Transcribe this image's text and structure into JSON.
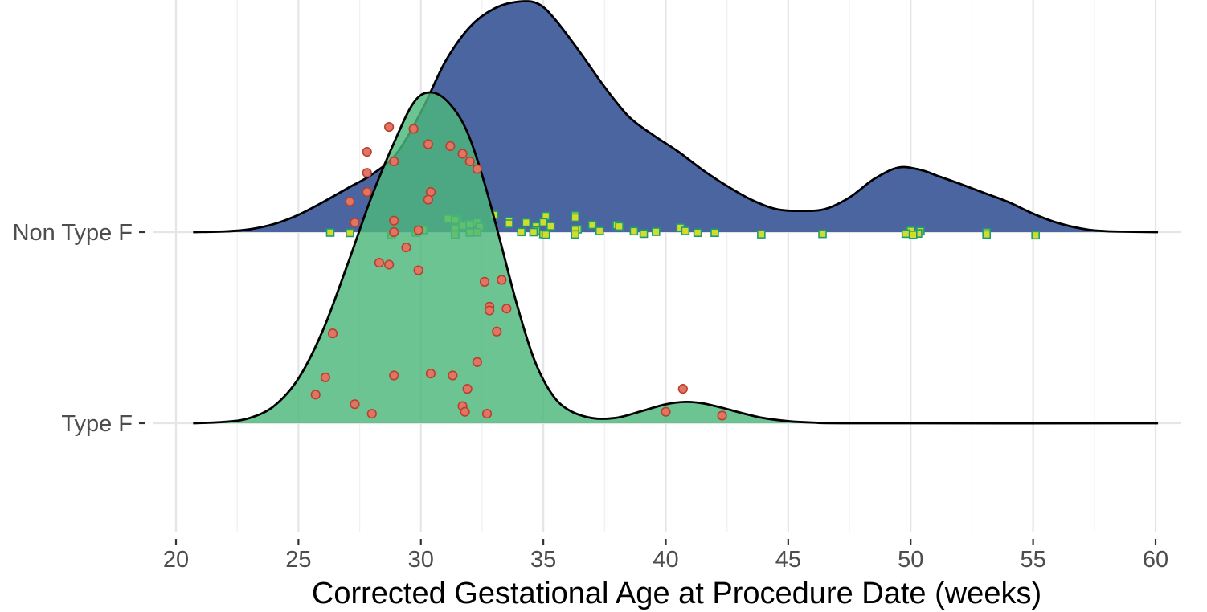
{
  "chart_data": {
    "type": "ridgeline",
    "title": "",
    "xlabel": "Corrected Gestational Age at Procedure Date (weeks)",
    "ylabel": "",
    "xlim": [
      20,
      60
    ],
    "x_ticks": [
      20,
      25,
      30,
      35,
      40,
      45,
      50,
      55,
      60
    ],
    "x_tick_labels": [
      "20",
      "25",
      "30",
      "35",
      "40",
      "45",
      "50",
      "55",
      "60"
    ],
    "categories": [
      "Type F",
      "Non Type F"
    ],
    "grid": true,
    "legend": "none",
    "series": [
      {
        "name": "Non Type F",
        "fill_color": "#4b65a1",
        "point_shape": "square",
        "point_fill": "#d2dc2a",
        "point_stroke": "#1f9a78",
        "density_profile": [
          [
            20.7,
            0.0
          ],
          [
            22,
            0.003
          ],
          [
            23,
            0.012
          ],
          [
            24,
            0.035
          ],
          [
            25,
            0.075
          ],
          [
            26,
            0.13
          ],
          [
            27,
            0.19
          ],
          [
            28,
            0.25
          ],
          [
            29,
            0.34
          ],
          [
            30,
            0.52
          ],
          [
            31,
            0.74
          ],
          [
            32,
            0.89
          ],
          [
            33,
            0.97
          ],
          [
            34,
            1.0
          ],
          [
            34.8,
            0.99
          ],
          [
            35.5,
            0.92
          ],
          [
            36.5,
            0.78
          ],
          [
            37.5,
            0.63
          ],
          [
            38.5,
            0.5
          ],
          [
            39.5,
            0.42
          ],
          [
            40.5,
            0.35
          ],
          [
            41.5,
            0.27
          ],
          [
            42.5,
            0.2
          ],
          [
            43.5,
            0.14
          ],
          [
            44.5,
            0.1
          ],
          [
            45.5,
            0.092
          ],
          [
            46.5,
            0.1
          ],
          [
            47.5,
            0.15
          ],
          [
            48.5,
            0.23
          ],
          [
            49.5,
            0.28
          ],
          [
            50.4,
            0.27
          ],
          [
            51.2,
            0.24
          ],
          [
            52,
            0.21
          ],
          [
            53,
            0.17
          ],
          [
            54,
            0.13
          ],
          [
            55,
            0.08
          ],
          [
            56,
            0.04
          ],
          [
            57,
            0.015
          ],
          [
            58,
            0.004
          ],
          [
            60.1,
            0.0
          ]
        ],
        "points": [
          [
            33.0,
            0.09
          ],
          [
            35.1,
            0.084
          ],
          [
            36.3,
            0.087
          ],
          [
            36.3,
            0.076
          ],
          [
            31.1,
            0.07
          ],
          [
            31.5,
            0.07
          ],
          [
            31.4,
            0.064
          ],
          [
            33.6,
            0.057
          ],
          [
            32.3,
            0.05
          ],
          [
            34.3,
            0.05
          ],
          [
            35.0,
            0.051
          ],
          [
            33.6,
            0.044
          ],
          [
            37.0,
            0.038
          ],
          [
            38.0,
            0.037
          ],
          [
            38.1,
            0.03
          ],
          [
            34.7,
            0.03
          ],
          [
            35.3,
            0.031
          ],
          [
            40.6,
            0.023
          ],
          [
            36.4,
            0.015
          ],
          [
            36.3,
            0.012
          ],
          [
            34.7,
            0.008
          ],
          [
            37.3,
            0.006
          ],
          [
            38.7,
            0.005
          ],
          [
            40.8,
            0.006
          ],
          [
            39.6,
            0.002
          ],
          [
            34.1,
            0.001
          ],
          [
            34.6,
            0.0
          ],
          [
            41.3,
            -0.003
          ],
          [
            42.0,
            -0.003
          ],
          [
            39.1,
            -0.008
          ],
          [
            35.0,
            -0.01
          ],
          [
            35.1,
            -0.013
          ],
          [
            36.3,
            -0.012
          ],
          [
            43.9,
            -0.011
          ],
          [
            46.4,
            -0.009
          ],
          [
            50.0,
            0.007
          ],
          [
            50.4,
            0.005
          ],
          [
            49.8,
            -0.008
          ],
          [
            50.3,
            -0.007
          ],
          [
            50.1,
            -0.014
          ],
          [
            53.1,
            -0.001
          ],
          [
            53.1,
            -0.012
          ],
          [
            55.1,
            -0.016
          ],
          [
            26.3,
            -0.002
          ],
          [
            32.0,
            0.041
          ],
          [
            31.7,
            0.034
          ],
          [
            32.4,
            0.027
          ],
          [
            31.4,
            0.019
          ],
          [
            30.1,
            0.014
          ],
          [
            30.1,
            0.011
          ],
          [
            29.8,
            -0.002
          ],
          [
            32.0,
            -0.002
          ],
          [
            32.3,
            -0.001
          ],
          [
            28.8,
            -0.015
          ],
          [
            31.4,
            -0.011
          ],
          [
            31.4,
            -0.013
          ],
          [
            27.1,
            -0.004
          ]
        ]
      },
      {
        "name": "Type F",
        "fill_color": "#4cb77b",
        "fill_opacity": 0.82,
        "point_shape": "circle",
        "point_fill": "#e07564",
        "point_stroke": "#b8402f",
        "density_profile": [
          [
            20.7,
            0.0
          ],
          [
            22,
            0.004
          ],
          [
            23,
            0.015
          ],
          [
            24,
            0.05
          ],
          [
            25,
            0.13
          ],
          [
            26,
            0.27
          ],
          [
            27,
            0.46
          ],
          [
            28,
            0.66
          ],
          [
            29,
            0.83
          ],
          [
            29.7,
            0.93
          ],
          [
            30.3,
            0.96
          ],
          [
            31,
            0.94
          ],
          [
            31.8,
            0.86
          ],
          [
            32.5,
            0.72
          ],
          [
            33.2,
            0.54
          ],
          [
            33.9,
            0.35
          ],
          [
            34.6,
            0.19
          ],
          [
            35.3,
            0.09
          ],
          [
            36,
            0.04
          ],
          [
            37,
            0.015
          ],
          [
            38,
            0.016
          ],
          [
            39,
            0.035
          ],
          [
            40,
            0.055
          ],
          [
            40.8,
            0.062
          ],
          [
            41.5,
            0.058
          ],
          [
            42.3,
            0.045
          ],
          [
            43.2,
            0.028
          ],
          [
            44,
            0.015
          ],
          [
            45,
            0.006
          ],
          [
            46,
            0.002
          ],
          [
            48,
            0.0
          ],
          [
            60.1,
            0.0
          ]
        ],
        "points": [
          [
            28.7,
            1.55
          ],
          [
            29.7,
            1.54
          ],
          [
            30.3,
            1.46
          ],
          [
            31.2,
            1.45
          ],
          [
            31.7,
            1.41
          ],
          [
            32.0,
            1.37
          ],
          [
            32.3,
            1.33
          ],
          [
            27.8,
            1.42
          ],
          [
            28.9,
            1.37
          ],
          [
            27.8,
            1.31
          ],
          [
            27.8,
            1.21
          ],
          [
            27.1,
            1.16
          ],
          [
            30.4,
            1.21
          ],
          [
            30.3,
            1.17
          ],
          [
            27.3,
            1.05
          ],
          [
            28.9,
            1.06
          ],
          [
            28.9,
            1.0
          ],
          [
            29.9,
            1.01
          ],
          [
            29.4,
            0.92
          ],
          [
            28.3,
            0.84
          ],
          [
            28.7,
            0.83
          ],
          [
            29.9,
            0.8
          ],
          [
            32.6,
            0.74
          ],
          [
            33.3,
            0.75
          ],
          [
            32.8,
            0.61
          ],
          [
            32.8,
            0.59
          ],
          [
            33.5,
            0.6
          ],
          [
            26.4,
            0.47
          ],
          [
            33.1,
            0.48
          ],
          [
            32.3,
            0.32
          ],
          [
            26.1,
            0.24
          ],
          [
            28.9,
            0.25
          ],
          [
            30.4,
            0.26
          ],
          [
            31.3,
            0.25
          ],
          [
            31.9,
            0.18
          ],
          [
            25.7,
            0.15
          ],
          [
            27.3,
            0.1
          ],
          [
            31.7,
            0.09
          ],
          [
            31.8,
            0.06
          ],
          [
            28.0,
            0.05
          ],
          [
            32.7,
            0.05
          ],
          [
            40.7,
            0.18
          ],
          [
            40.0,
            0.06
          ],
          [
            42.3,
            0.04
          ]
        ]
      }
    ]
  }
}
